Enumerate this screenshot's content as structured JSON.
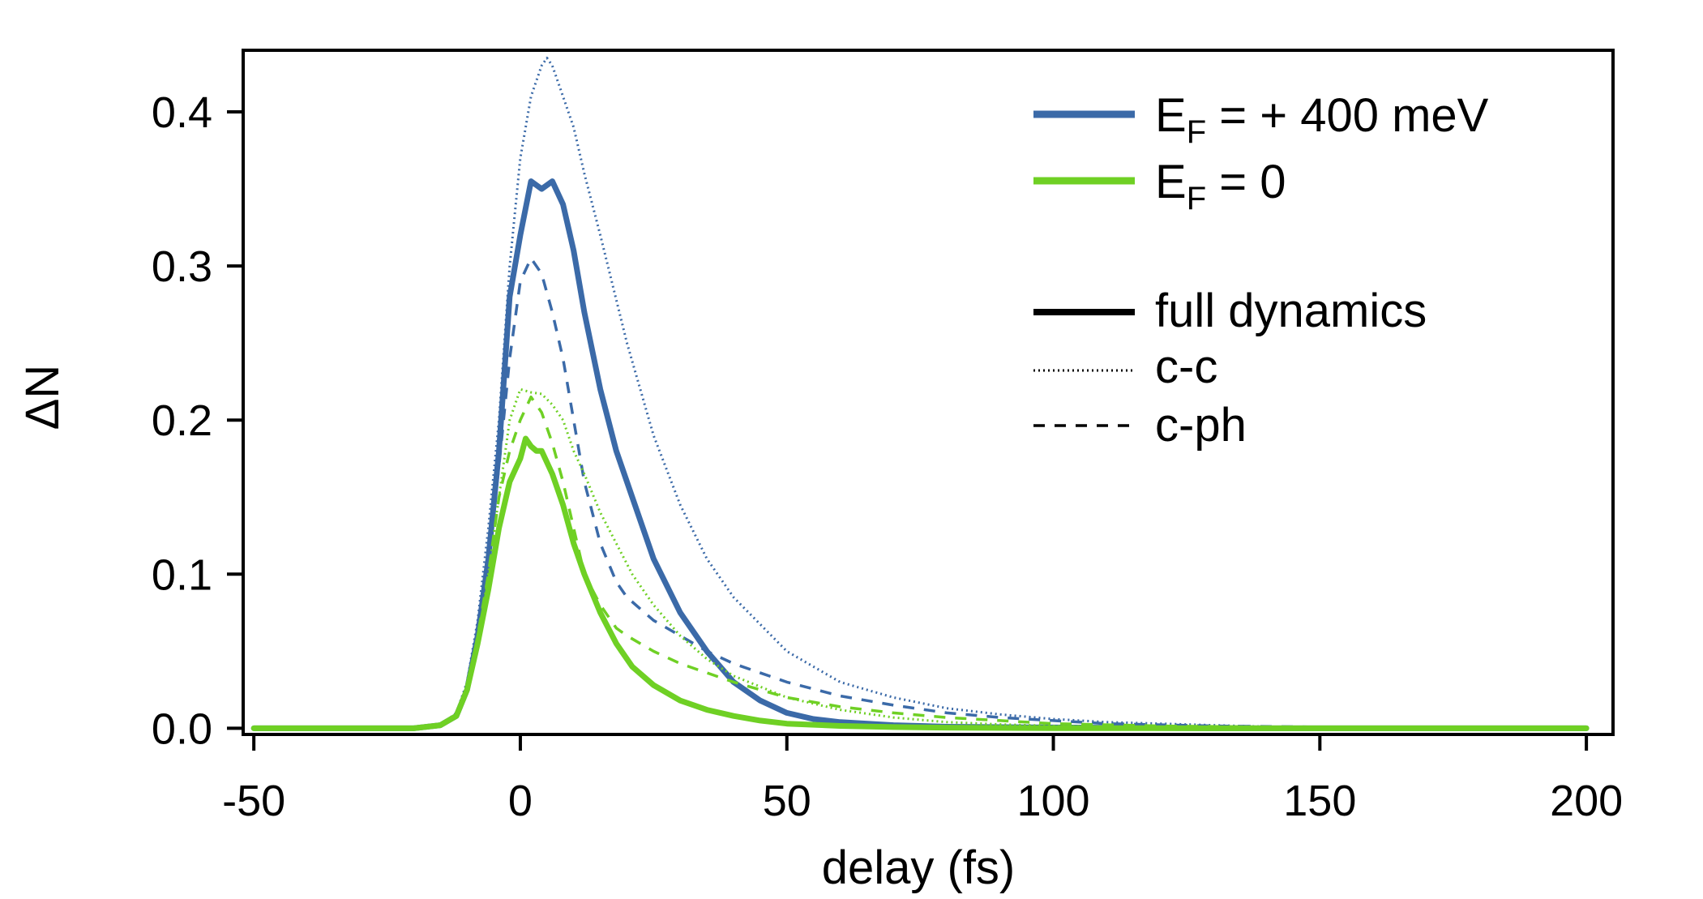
{
  "colors": {
    "blue": "#3b6aa8",
    "green": "#6fd024",
    "axis": "#000000",
    "background": "#ffffff"
  },
  "chart_data": {
    "type": "line",
    "title": "",
    "xlabel": "delay (fs)",
    "ylabel": "ΔN",
    "xlim": [
      -52,
      205
    ],
    "ylim": [
      -0.004,
      0.44
    ],
    "xticks": [
      -50,
      0,
      50,
      100,
      150,
      200
    ],
    "xtick_labels": [
      "-50",
      "0",
      "50",
      "100",
      "150",
      "200"
    ],
    "yticks": [
      0.0,
      0.1,
      0.2,
      0.3,
      0.4
    ],
    "ytick_labels": [
      "0.0",
      "0.1",
      "0.2",
      "0.3",
      "0.4"
    ],
    "grid": false,
    "legend": {
      "placement": "top-right",
      "color_entries": [
        {
          "prefix": "E",
          "subscript": "F",
          "suffix": " = + 400 meV",
          "color": "#3b6aa8"
        },
        {
          "prefix": "E",
          "subscript": "F",
          "suffix": " = 0",
          "color": "#6fd024"
        }
      ],
      "style_entries": [
        {
          "label": "full dynamics",
          "style": "solid"
        },
        {
          "label": "c-c",
          "style": "dotted"
        },
        {
          "label": "c-ph",
          "style": "dashed"
        }
      ]
    },
    "series": [
      {
        "name": "E_F = +400 meV, full dynamics",
        "color": "#3b6aa8",
        "style": "solid",
        "x": [
          -50,
          -20,
          -15,
          -12,
          -10,
          -8,
          -6,
          -4,
          -2,
          0,
          2,
          4,
          6,
          8,
          10,
          12,
          15,
          18,
          21,
          25,
          30,
          35,
          40,
          45,
          50,
          55,
          60,
          70,
          80,
          100,
          130,
          160,
          200
        ],
        "y": [
          0,
          0,
          0.002,
          0.008,
          0.025,
          0.06,
          0.11,
          0.18,
          0.28,
          0.32,
          0.355,
          0.35,
          0.355,
          0.34,
          0.31,
          0.27,
          0.22,
          0.18,
          0.15,
          0.11,
          0.075,
          0.05,
          0.03,
          0.018,
          0.01,
          0.006,
          0.004,
          0.002,
          0.001,
          0.0005,
          0,
          0,
          0
        ]
      },
      {
        "name": "E_F = +400 meV, c-c",
        "color": "#3b6aa8",
        "style": "dotted",
        "x": [
          -50,
          -20,
          -15,
          -12,
          -10,
          -8,
          -6,
          -4,
          -2,
          0,
          2,
          4,
          5,
          6,
          8,
          10,
          12,
          15,
          20,
          25,
          30,
          35,
          40,
          50,
          60,
          70,
          80,
          90,
          100,
          110,
          120,
          140,
          160,
          185
        ],
        "y": [
          0,
          0,
          0.002,
          0.01,
          0.03,
          0.07,
          0.13,
          0.2,
          0.3,
          0.37,
          0.41,
          0.43,
          0.435,
          0.43,
          0.41,
          0.39,
          0.36,
          0.32,
          0.25,
          0.19,
          0.145,
          0.11,
          0.085,
          0.05,
          0.03,
          0.02,
          0.013,
          0.009,
          0.006,
          0.004,
          0.003,
          0.001,
          0.0005,
          0
        ]
      },
      {
        "name": "E_F = +400 meV, c-ph",
        "color": "#3b6aa8",
        "style": "dashed",
        "x": [
          -50,
          -20,
          -15,
          -12,
          -10,
          -8,
          -6,
          -4,
          -2,
          0,
          2,
          4,
          6,
          8,
          10,
          12,
          15,
          18,
          20,
          25,
          30,
          35,
          40,
          50,
          60,
          70,
          80,
          90,
          100,
          110,
          130,
          150,
          180,
          200
        ],
        "y": [
          0,
          0,
          0.002,
          0.008,
          0.025,
          0.06,
          0.11,
          0.17,
          0.24,
          0.29,
          0.305,
          0.295,
          0.27,
          0.24,
          0.2,
          0.16,
          0.12,
          0.095,
          0.085,
          0.07,
          0.06,
          0.05,
          0.042,
          0.03,
          0.021,
          0.015,
          0.01,
          0.007,
          0.005,
          0.003,
          0.0015,
          0.0008,
          0.0003,
          0
        ]
      },
      {
        "name": "E_F = 0, c-c",
        "color": "#6fd024",
        "style": "dotted",
        "x": [
          -50,
          -20,
          -15,
          -12,
          -10,
          -8,
          -6,
          -4,
          -2,
          0,
          2,
          4,
          6,
          8,
          10,
          12,
          15,
          18,
          21,
          25,
          30,
          35,
          40,
          50,
          60,
          70,
          80,
          90,
          100,
          120,
          150,
          200
        ],
        "y": [
          0,
          0,
          0.002,
          0.008,
          0.025,
          0.055,
          0.1,
          0.15,
          0.2,
          0.22,
          0.218,
          0.217,
          0.21,
          0.2,
          0.18,
          0.165,
          0.14,
          0.12,
          0.1,
          0.08,
          0.06,
          0.045,
          0.034,
          0.02,
          0.012,
          0.007,
          0.004,
          0.0025,
          0.0015,
          0.0007,
          0.0002,
          0
        ]
      },
      {
        "name": "E_F = 0, c-ph",
        "color": "#6fd024",
        "style": "dashed",
        "x": [
          -50,
          -20,
          -15,
          -12,
          -10,
          -8,
          -6,
          -4,
          -2,
          0,
          2,
          4,
          6,
          8,
          10,
          12,
          15,
          18,
          20,
          25,
          30,
          35,
          40,
          45,
          50,
          60,
          70,
          80,
          90,
          100,
          120,
          150,
          200
        ],
        "y": [
          0,
          0,
          0.002,
          0.008,
          0.025,
          0.06,
          0.1,
          0.15,
          0.18,
          0.2,
          0.215,
          0.205,
          0.185,
          0.16,
          0.13,
          0.1,
          0.08,
          0.065,
          0.06,
          0.05,
          0.042,
          0.036,
          0.03,
          0.025,
          0.02,
          0.014,
          0.01,
          0.007,
          0.005,
          0.003,
          0.0015,
          0.0005,
          0
        ]
      },
      {
        "name": "E_F = 0, full dynamics",
        "color": "#6fd024",
        "style": "solid",
        "x": [
          -50,
          -20,
          -15,
          -12,
          -10,
          -8,
          -6,
          -4,
          -2,
          0,
          1,
          2,
          3,
          4,
          6,
          8,
          10,
          12,
          15,
          18,
          21,
          25,
          30,
          35,
          40,
          45,
          50,
          60,
          70,
          80,
          100,
          130,
          200
        ],
        "y": [
          0,
          0,
          0.002,
          0.008,
          0.025,
          0.055,
          0.09,
          0.13,
          0.16,
          0.175,
          0.188,
          0.183,
          0.18,
          0.18,
          0.165,
          0.145,
          0.12,
          0.1,
          0.075,
          0.055,
          0.04,
          0.028,
          0.018,
          0.012,
          0.008,
          0.005,
          0.003,
          0.0015,
          0.0008,
          0.0004,
          0.0001,
          0,
          0
        ]
      }
    ]
  }
}
